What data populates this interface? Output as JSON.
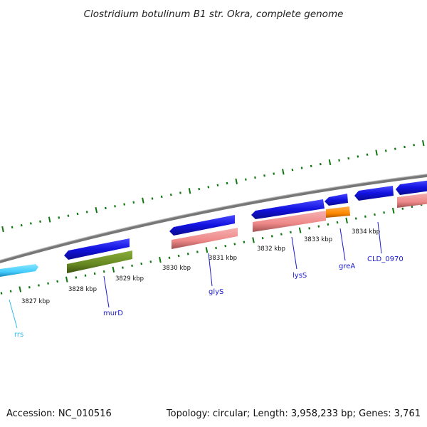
{
  "title": "Clostridium botulinum B1 str. Okra, complete genome",
  "footer": {
    "accession": "Accession: NC_010516",
    "topology": "Topology: circular; Length: 3,958,233 bp; Genes: 3,761"
  },
  "kbp_labels": [
    "3827 kbp",
    "3828 kbp",
    "3829 kbp",
    "3830 kbp",
    "3831 kbp",
    "3832 kbp",
    "3833 kbp",
    "3834 kbp"
  ],
  "genes": [
    {
      "name": "rrs",
      "color": "#33bbee"
    },
    {
      "name": "murD",
      "color": "#1a1acc"
    },
    {
      "name": "glyS",
      "color": "#1a1acc"
    },
    {
      "name": "lysS",
      "color": "#1a1acc"
    },
    {
      "name": "greA",
      "color": "#1a1acc"
    },
    {
      "name": "CLD_0970",
      "color": "#1a1acc"
    }
  ],
  "colors": {
    "cds_forward": "#1414dd",
    "rrna": "#44ccff",
    "rna_pink": "#ee8888",
    "olive_feature": "#668822",
    "orange_feature": "#ff8800",
    "tick_green": "#117711",
    "backbone": "#888888"
  }
}
